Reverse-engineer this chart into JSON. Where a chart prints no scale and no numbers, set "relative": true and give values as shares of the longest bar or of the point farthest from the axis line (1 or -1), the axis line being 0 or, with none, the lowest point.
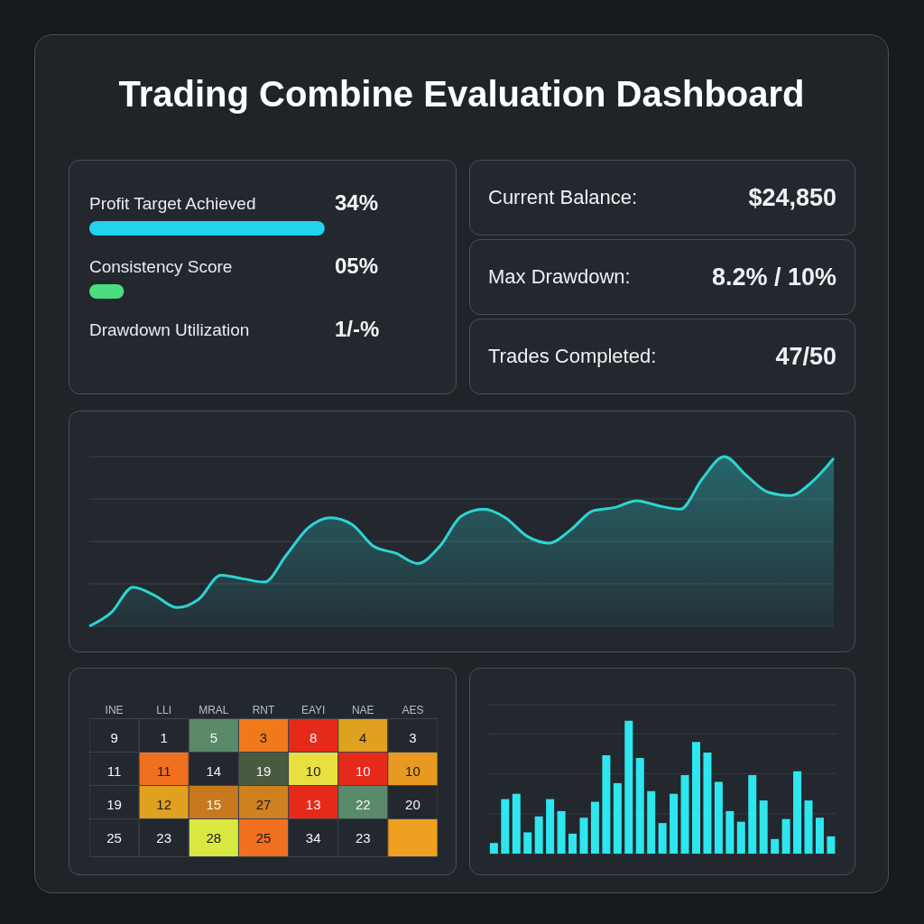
{
  "chart_data": [
    {
      "type": "bar",
      "title": "Trading Combine Evaluation Dashboard",
      "orientation": "horizontal",
      "categories": [
        "Profit Target Achieved",
        "Consistency Score",
        "Drawdown Utilization"
      ],
      "values": [
        34,
        5,
        null
      ],
      "value_labels": [
        "34%",
        "05%",
        "1/-%"
      ],
      "colors": [
        "#22d3ee",
        "#4ade80",
        "#f97316"
      ]
    },
    {
      "type": "other",
      "annotations": [
        "Current Balance:",
        "$24,850",
        "Max Drawdown:",
        "8.2% / 10%",
        "Trades Completed:",
        "47/50"
      ]
    },
    {
      "type": "area",
      "relative": true,
      "grid": true,
      "color": "#2dd4d4",
      "categories": [
        null,
        null,
        null,
        null,
        null,
        null,
        null,
        null,
        null,
        null,
        null,
        null,
        null,
        null,
        null,
        null,
        null,
        null,
        null,
        null,
        null,
        null,
        null,
        null,
        null,
        null,
        null,
        null,
        null,
        null,
        null,
        null,
        null,
        null,
        null
      ],
      "values": [
        0,
        0.08,
        0.23,
        0.18,
        0.11,
        0.16,
        0.3,
        0.28,
        0.26,
        0.42,
        0.58,
        0.64,
        0.6,
        0.47,
        0.43,
        0.37,
        0.47,
        0.65,
        0.69,
        0.64,
        0.53,
        0.49,
        0.57,
        0.68,
        0.7,
        0.74,
        0.71,
        0.69,
        0.87,
        1,
        0.89,
        0.79,
        0.77,
        0.85,
        0.99
      ]
    },
    {
      "type": "heatmap",
      "data_labels": true,
      "categories": [
        "INE",
        "LLI",
        "MRAL",
        "RNT",
        "EAYI",
        "NAE",
        "AES"
      ],
      "y_categories": [
        null,
        null,
        null,
        null
      ],
      "cells": [
        [
          9,
          1,
          5,
          3,
          8,
          4,
          3
        ],
        [
          11,
          11,
          14,
          19,
          10,
          10,
          10
        ],
        [
          19,
          12,
          15,
          27,
          13,
          22,
          20
        ],
        [
          25,
          23,
          28,
          25,
          34,
          23,
          null
        ]
      ],
      "colors": [
        [
          null,
          null,
          "#5a8a6a",
          "#f07a1a",
          "#e52a1a",
          "#e0a020",
          null
        ],
        [
          null,
          "#f07020",
          null,
          "#4a5a40",
          "#e8e040",
          "#e52a1a",
          "#e89a20"
        ],
        [
          null,
          "#e0a020",
          "#c8781e",
          "#d0801e",
          "#e52a1a",
          "#5a8a6a",
          null
        ],
        [
          null,
          null,
          "#d8e840",
          "#f07020",
          null,
          null,
          "#f0a020"
        ]
      ]
    },
    {
      "type": "bar",
      "relative": true,
      "grid": true,
      "color": "#2ee6ee",
      "categories": [
        null,
        null,
        null,
        null,
        null,
        null,
        null,
        null,
        null,
        null,
        null,
        null,
        null,
        null,
        null,
        null,
        null,
        null,
        null,
        null,
        null,
        null,
        null,
        null,
        null,
        null,
        null,
        null,
        null,
        null,
        null
      ],
      "values": [
        0.08,
        0.41,
        0.45,
        0.16,
        0.28,
        0.41,
        0.32,
        0.15,
        0.27,
        0.39,
        0.74,
        0.53,
        1,
        0.72,
        0.47,
        0.23,
        0.45,
        0.59,
        0.84,
        0.76,
        0.54,
        0.32,
        0.24,
        0.59,
        0.4,
        0.11,
        0.26,
        0.62,
        0.4,
        0.27,
        0.13
      ]
    }
  ]
}
